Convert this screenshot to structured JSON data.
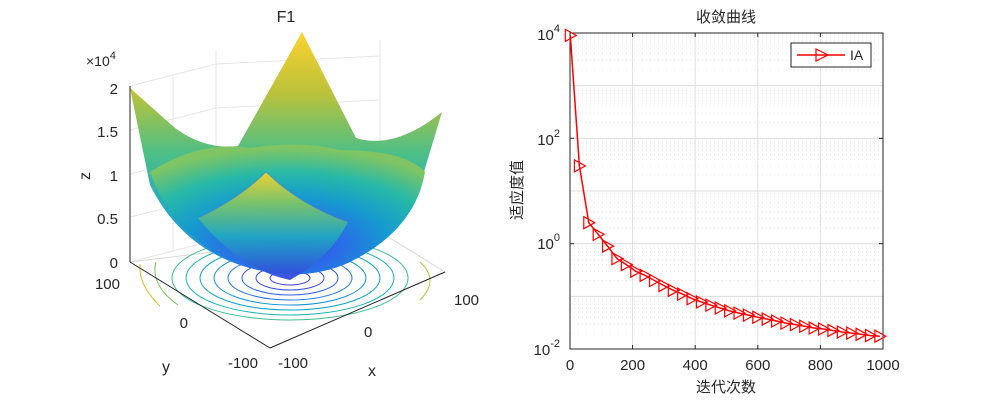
{
  "chart_data": [
    {
      "type": "surface3d",
      "title": "F1",
      "xlabel": "x",
      "ylabel": "y",
      "zlabel": "z",
      "z_multiplier": "×10^4",
      "z_multiplier_parts": {
        "prefix": "×10",
        "exp": "4"
      },
      "xlim": [
        -100,
        100
      ],
      "ylim": [
        -100,
        100
      ],
      "zlim": [
        0,
        20000
      ],
      "x_ticks": [
        "-100",
        "0",
        "100"
      ],
      "y_ticks": [
        "-100",
        "0",
        "100"
      ],
      "z_ticks": [
        "0",
        "0.5",
        "1",
        "1.5",
        "2"
      ],
      "function": "z = x^2 + y^2",
      "colormap": "parula",
      "contour_levels": 11,
      "grid": true
    },
    {
      "type": "line",
      "title": "收敛曲线",
      "xlabel": "迭代次数",
      "ylabel": "适应度值",
      "yscale": "log",
      "xlim": [
        0,
        1000
      ],
      "ylim": [
        0.01,
        10000
      ],
      "x_ticks": [
        "0",
        "200",
        "400",
        "600",
        "800",
        "1000"
      ],
      "y_ticks": [
        {
          "base": "10",
          "exp": "-2"
        },
        {
          "base": "10",
          "exp": "0"
        },
        {
          "base": "10",
          "exp": "2"
        },
        {
          "base": "10",
          "exp": "4"
        }
      ],
      "grid": true,
      "legend_position": "top-right",
      "series": [
        {
          "name": "IA",
          "color": "#ff0000",
          "marker": "triangle-right",
          "x": [
            1,
            30,
            60,
            90,
            120,
            150,
            180,
            210,
            240,
            270,
            300,
            330,
            360,
            390,
            420,
            450,
            480,
            510,
            540,
            570,
            600,
            630,
            660,
            690,
            720,
            750,
            780,
            810,
            840,
            870,
            900,
            930,
            960,
            990
          ],
          "y": [
            9000,
            30,
            2.5,
            1.5,
            0.9,
            0.52,
            0.4,
            0.3,
            0.25,
            0.2,
            0.16,
            0.13,
            0.11,
            0.09,
            0.078,
            0.068,
            0.06,
            0.053,
            0.048,
            0.044,
            0.04,
            0.037,
            0.034,
            0.031,
            0.029,
            0.027,
            0.025,
            0.024,
            0.0225,
            0.021,
            0.02,
            0.019,
            0.018,
            0.0175
          ]
        }
      ]
    }
  ]
}
